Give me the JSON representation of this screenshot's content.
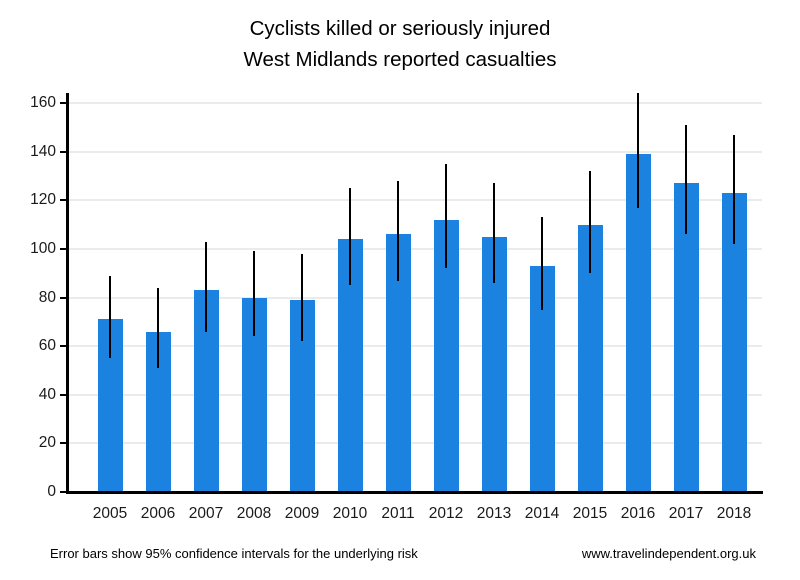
{
  "title": {
    "line1": "Cyclists killed or seriously injured",
    "line2": "West Midlands reported casualties"
  },
  "footer": {
    "left": "Error bars show 95% confidence intervals for the underlying risk",
    "right": "www.travelindependent.org.uk"
  },
  "colors": {
    "bar": "#1c82e0",
    "error_bar": "#000000",
    "grid": "#ebebeb",
    "axis": "#000000",
    "tick_text": "#1a1a1a",
    "title_text": "#000000"
  },
  "chart_data": {
    "type": "bar",
    "title": "Cyclists killed or seriously injured",
    "subtitle": "West Midlands reported casualties",
    "categories": [
      "2005",
      "2006",
      "2007",
      "2008",
      "2009",
      "2010",
      "2011",
      "2012",
      "2013",
      "2014",
      "2015",
      "2016",
      "2017",
      "2018"
    ],
    "series": [
      {
        "name": "Cyclists killed or seriously injured",
        "values": [
          71,
          66,
          83,
          80,
          79,
          104,
          106,
          112,
          105,
          93,
          110,
          139,
          127,
          123
        ],
        "error_low": [
          55,
          51,
          66,
          64,
          62,
          85,
          87,
          92,
          86,
          75,
          90,
          117,
          106,
          102
        ],
        "error_high": [
          89,
          84,
          103,
          99,
          98,
          125,
          128,
          135,
          127,
          113,
          132,
          164,
          151,
          147
        ]
      }
    ],
    "error_bars": "95% confidence intervals for the underlying risk",
    "xlabel": "",
    "ylabel": "",
    "ylim": [
      0,
      165
    ],
    "yticks": [
      0,
      20,
      40,
      60,
      80,
      100,
      120,
      140,
      160
    ],
    "grid": true,
    "legend": false
  }
}
